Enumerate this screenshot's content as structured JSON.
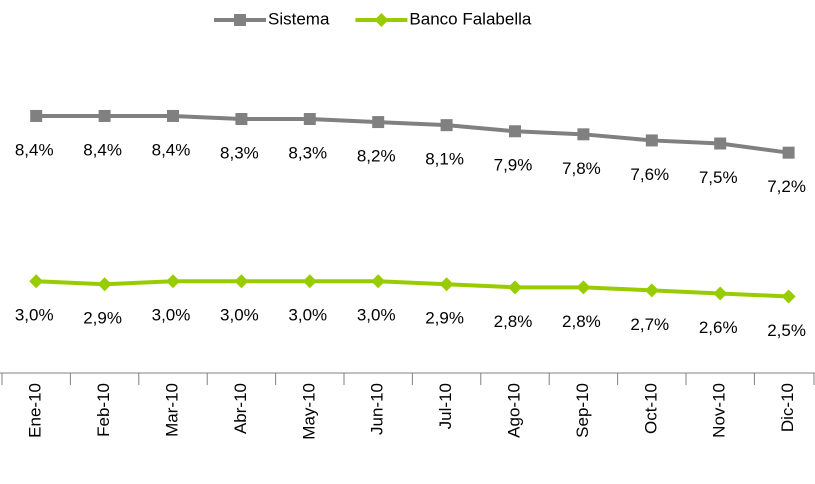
{
  "chart_data": {
    "type": "line",
    "categories": [
      "Ene-10",
      "Feb-10",
      "Mar-10",
      "Abr-10",
      "May-10",
      "Jun-10",
      "Jul-10",
      "Ago-10",
      "Sep-10",
      "Oct-10",
      "Nov-10",
      "Dic-10"
    ],
    "series": [
      {
        "name": "Sistema",
        "color": "#808080",
        "marker": "square",
        "values": [
          8.4,
          8.4,
          8.4,
          8.3,
          8.3,
          8.2,
          8.1,
          7.9,
          7.8,
          7.6,
          7.5,
          7.2
        ],
        "value_labels": [
          "8,4%",
          "8,4%",
          "8,4%",
          "8,3%",
          "8,3%",
          "8,2%",
          "8,1%",
          "7,9%",
          "7,8%",
          "7,6%",
          "7,5%",
          "7,2%"
        ]
      },
      {
        "name": "Banco Falabella",
        "color": "#99cc00",
        "marker": "diamond",
        "values": [
          3.0,
          2.9,
          3.0,
          3.0,
          3.0,
          3.0,
          2.9,
          2.8,
          2.8,
          2.7,
          2.6,
          2.5
        ],
        "value_labels": [
          "3,0%",
          "2,9%",
          "3,0%",
          "3,0%",
          "3,0%",
          "3,0%",
          "2,9%",
          "2,8%",
          "2,8%",
          "2,7%",
          "2,6%",
          "2,5%"
        ]
      }
    ],
    "ylim": [
      0,
      10
    ],
    "legend": "top"
  }
}
